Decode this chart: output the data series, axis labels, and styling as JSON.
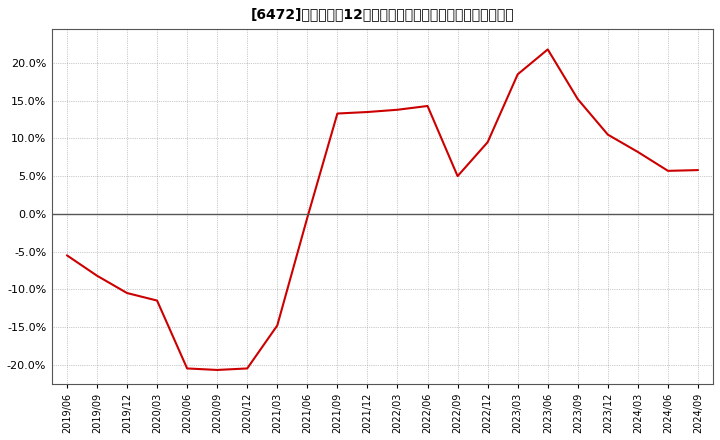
{
  "title": "[6472]　売上高の12か月移動合計の対前年同期増減率の推移",
  "line_color": "#cc0000",
  "bg_color": "#ffffff",
  "plot_bg_color": "#ffffff",
  "grid_color": "#999999",
  "ylim": [
    -0.225,
    0.245
  ],
  "yticks": [
    -0.2,
    -0.15,
    -0.1,
    -0.05,
    0.0,
    0.05,
    0.1,
    0.15,
    0.2
  ],
  "dates": [
    "2019/06",
    "2019/09",
    "2019/12",
    "2020/03",
    "2020/06",
    "2020/09",
    "2020/12",
    "2021/03",
    "2021/06",
    "2021/09",
    "2021/12",
    "2022/03",
    "2022/06",
    "2022/09",
    "2022/12",
    "2023/03",
    "2023/06",
    "2023/09",
    "2023/12",
    "2024/03",
    "2024/06",
    "2024/09"
  ],
  "values": [
    -0.055,
    -0.082,
    -0.105,
    -0.115,
    -0.205,
    -0.207,
    -0.205,
    -0.148,
    -0.005,
    0.133,
    0.135,
    0.138,
    0.143,
    0.05,
    0.095,
    0.185,
    0.218,
    0.152,
    0.105,
    0.082,
    0.057,
    0.058
  ]
}
